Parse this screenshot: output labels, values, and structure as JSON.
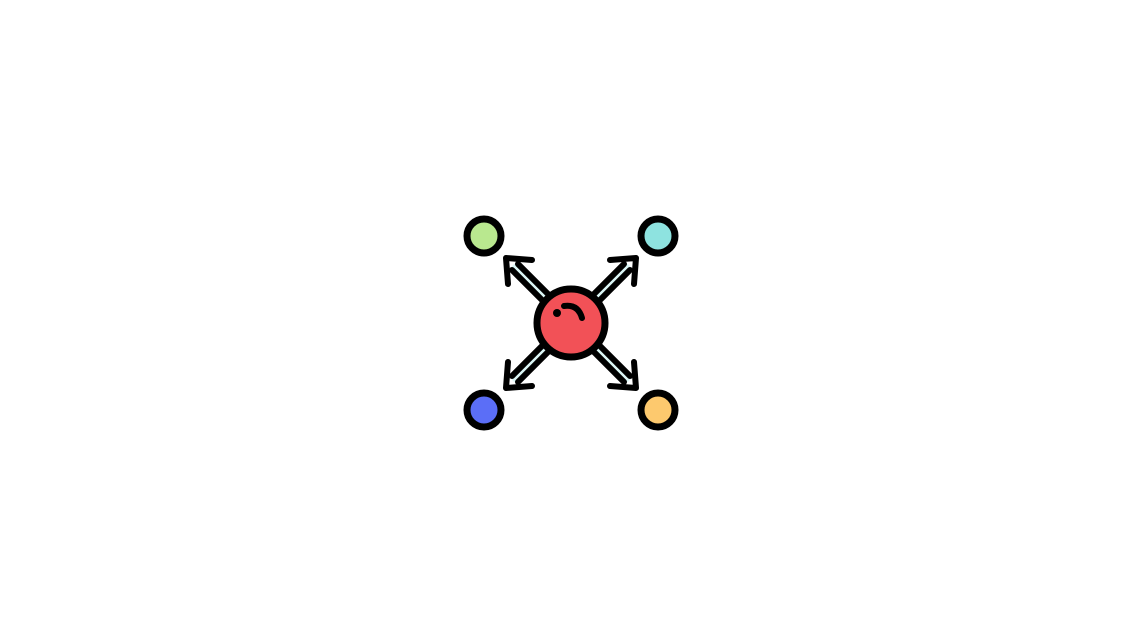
{
  "icon": {
    "name": "distribution-icon",
    "colors": {
      "outline": "#000000",
      "center": "#f25157",
      "arrow_fill": "#dcf7f6",
      "node_top_left": "#b9e88f",
      "node_top_right": "#8ee3e0",
      "node_bottom_left": "#5b6ef7",
      "node_bottom_right": "#fdc96e"
    }
  }
}
